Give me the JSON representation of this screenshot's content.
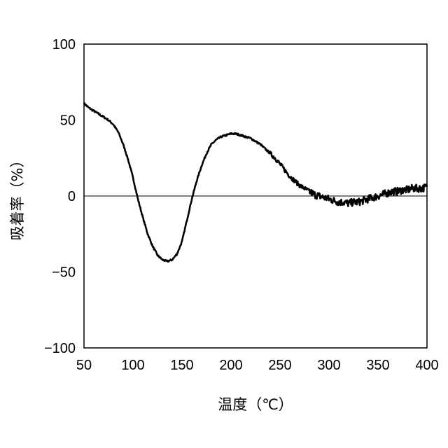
{
  "chart_data": {
    "type": "line",
    "title": "",
    "xlabel": "温度（℃）",
    "ylabel": "吸着率（%）",
    "xlim": [
      50,
      400
    ],
    "ylim": [
      -100,
      100
    ],
    "x_ticks": [
      "50",
      "100",
      "150",
      "200",
      "250",
      "300",
      "350",
      "400"
    ],
    "y_ticks": [
      "100",
      "50",
      "0",
      "−50",
      "−100"
    ],
    "grid": false,
    "legend": "none",
    "zero_line": true,
    "line_color": "#000000",
    "series": [
      {
        "x": [
          50,
          55,
          60,
          65,
          70,
          75,
          80,
          85,
          90,
          95,
          100,
          105,
          110,
          115,
          120,
          125,
          130,
          135,
          140,
          145,
          150,
          155,
          160,
          165,
          170,
          175,
          180,
          185,
          190,
          195,
          200,
          205,
          210,
          215,
          220,
          225,
          230,
          235,
          240,
          245,
          250,
          255,
          260,
          265,
          270,
          275,
          280,
          285,
          290,
          295,
          300,
          305,
          310,
          315,
          320,
          325,
          330,
          335,
          340,
          345,
          350,
          355,
          360,
          365,
          370,
          375,
          380,
          385,
          390,
          395,
          400
        ],
        "y": [
          61,
          58,
          56,
          54,
          52,
          50,
          47,
          42,
          34,
          24,
          12,
          -2,
          -14,
          -25,
          -33,
          -39,
          -42,
          -43,
          -42,
          -38,
          -30,
          -16,
          -2,
          10,
          20,
          28,
          34,
          37,
          39,
          40,
          41,
          41,
          40,
          39,
          38,
          36,
          34,
          31,
          28,
          25,
          21,
          17,
          13,
          10,
          7,
          5,
          3,
          1,
          0,
          -1,
          -2,
          -3,
          -4,
          -4,
          -5,
          -4,
          -4,
          -3,
          -2,
          -1,
          0,
          1,
          2,
          3,
          3,
          4,
          4,
          5,
          5,
          5,
          6
        ]
      }
    ]
  }
}
